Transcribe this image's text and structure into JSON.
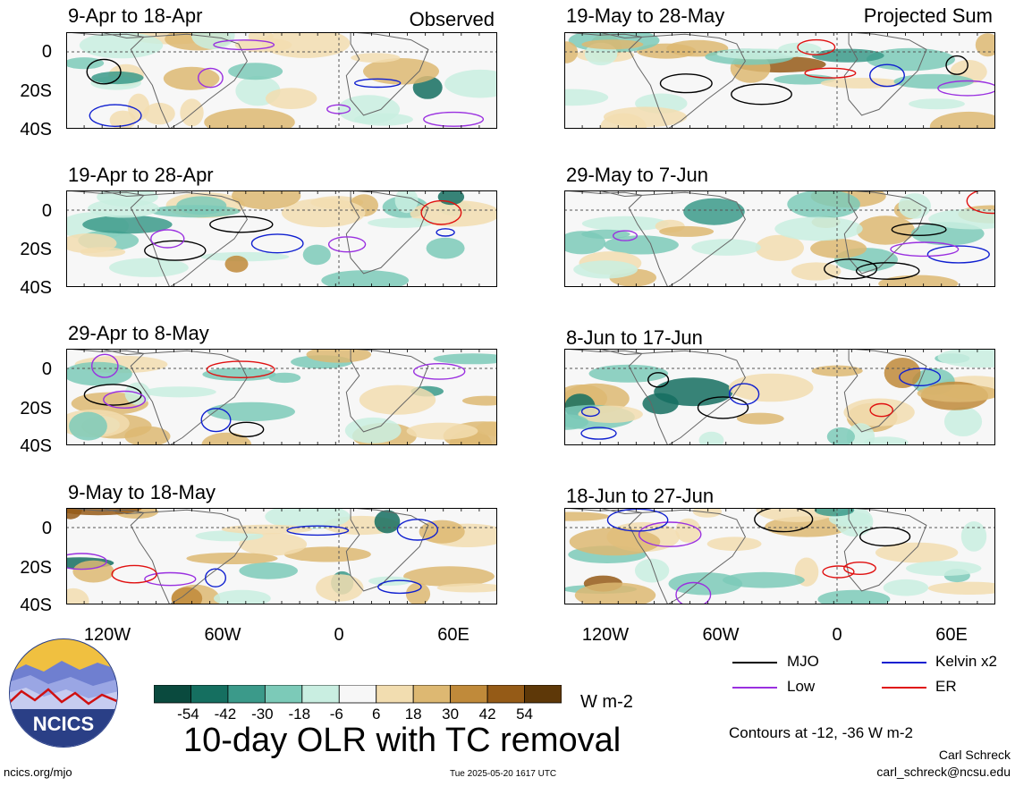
{
  "chart_data": {
    "type": "heatmap",
    "title": "10-day OLR with TC removal",
    "units": "W m-2",
    "x_ticks": [
      "120W",
      "60W",
      "0",
      "60E"
    ],
    "y_ticks": [
      "0",
      "20S",
      "40S"
    ],
    "colorbar": {
      "labels": [
        "-54",
        "-42",
        "-30",
        "-18",
        "-6",
        "6",
        "18",
        "30",
        "42",
        "54"
      ],
      "colors": [
        "#0a4a3e",
        "#156f60",
        "#3b9a8a",
        "#7ccab8",
        "#c9eee1",
        "#f7f7f7",
        "#f2ddb0",
        "#ddb872",
        "#c08a3a",
        "#955b17",
        "#5e3808"
      ]
    },
    "contour_note": "Contours at -12, -36 W m-2",
    "columns": [
      {
        "tag": "Observed",
        "panels": [
          "9-Apr to 18-Apr",
          "19-Apr to 28-Apr",
          "29-Apr to 8-May",
          "9-May to 18-May"
        ]
      },
      {
        "tag": "Projected Sum",
        "panels": [
          "19-May to 28-May",
          "29-May to 7-Jun",
          "8-Jun to 17-Jun",
          "18-Jun to 27-Jun"
        ]
      }
    ],
    "legend": [
      {
        "name": "MJO",
        "color": "#000000"
      },
      {
        "name": "Kelvin x2",
        "color": "#1020d0"
      },
      {
        "name": "Low",
        "color": "#9a30e0"
      },
      {
        "name": "ER",
        "color": "#e01010"
      }
    ]
  },
  "footer": {
    "logo_text": "NCICS",
    "site": "ncics.org/mjo",
    "timestamp": "Tue 2025-05-20 1617 UTC",
    "author": "Carl Schreck",
    "email": "carl_schreck@ncsu.edu"
  }
}
